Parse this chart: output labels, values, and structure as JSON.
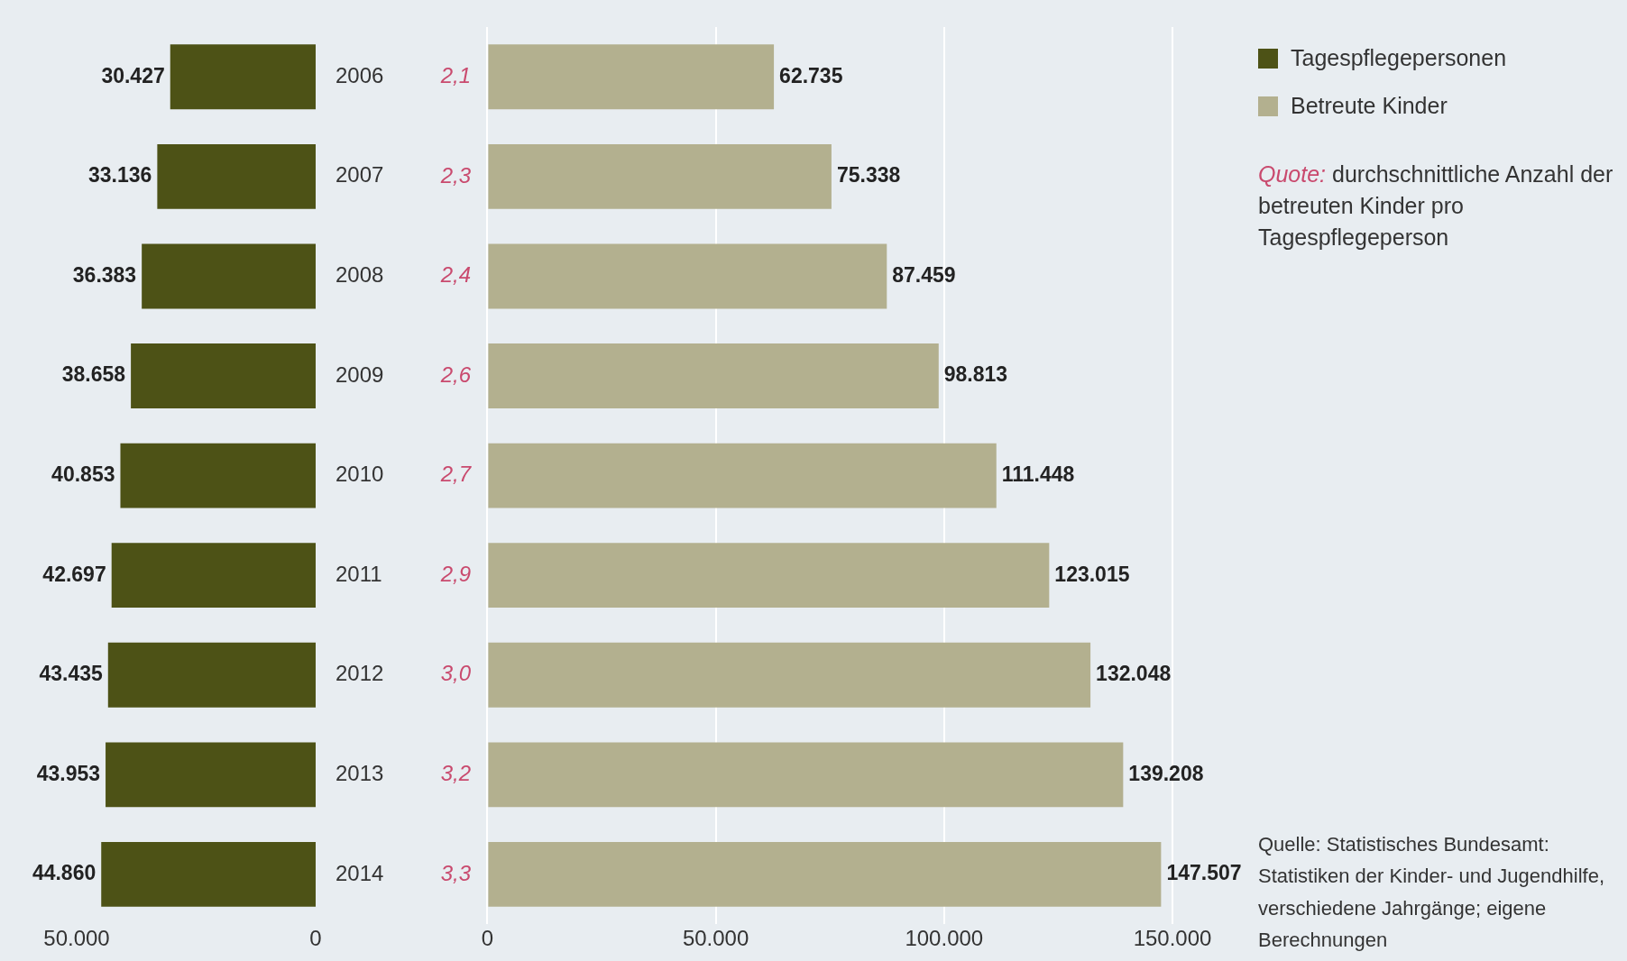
{
  "chart_data": [
    {
      "type": "bar",
      "orientation": "horizontal",
      "categories": [
        "2006",
        "2007",
        "2008",
        "2009",
        "2010",
        "2011",
        "2012",
        "2013",
        "2014"
      ],
      "series": [
        {
          "name": "Tagespflegepersonen",
          "color": "#4d5216",
          "values": [
            30427,
            33136,
            36383,
            38658,
            40853,
            42697,
            43435,
            43953,
            44860
          ],
          "value_labels": [
            "30.427",
            "33.136",
            "36.383",
            "38.658",
            "40.853",
            "42.697",
            "43.435",
            "43.953",
            "44.860"
          ]
        }
      ],
      "xlim": [
        50000,
        0
      ],
      "xticks": [
        {
          "value": 50000,
          "label": "50.000"
        },
        0
      ],
      "tick_labels": "x",
      "legend": "right"
    },
    {
      "type": "bar",
      "orientation": "horizontal",
      "categories": [
        "2006",
        "2007",
        "2008",
        "2009",
        "2010",
        "2011",
        "2012",
        "2013",
        "2014"
      ],
      "series": [
        {
          "name": "Betreute Kinder",
          "color": "#b3b08f",
          "values": [
            62735,
            75338,
            87459,
            98813,
            111448,
            123015,
            132048,
            139208,
            147507
          ],
          "value_labels": [
            "62.735",
            "75.338",
            "87.459",
            "98.813",
            "111.448",
            "123.015",
            "132.048",
            "139.208",
            "147.507"
          ]
        }
      ],
      "xlim": [
        0,
        150000
      ],
      "xticks": [
        0,
        {
          "value": 50000,
          "label": "50.000"
        },
        {
          "value": 100000,
          "label": "100.000"
        },
        {
          "value": 150000,
          "label": "150.000"
        }
      ],
      "grid": "x",
      "legend": "right",
      "annotations": [
        "Quote: durchschnittliche Anzahl der betreuten Kinder pro Tagespflegeperson",
        "Quelle: Statistisches Bundesamt: Statistiken der Kinder- und Jugendhilfe, verschiedene Jahrgänge; eigene Berechnungen",
        "2,1",
        "2,3",
        "2,4",
        "2,6",
        "2,7",
        "2,9",
        "3,0",
        "3,2",
        "3,3"
      ]
    }
  ]
}
